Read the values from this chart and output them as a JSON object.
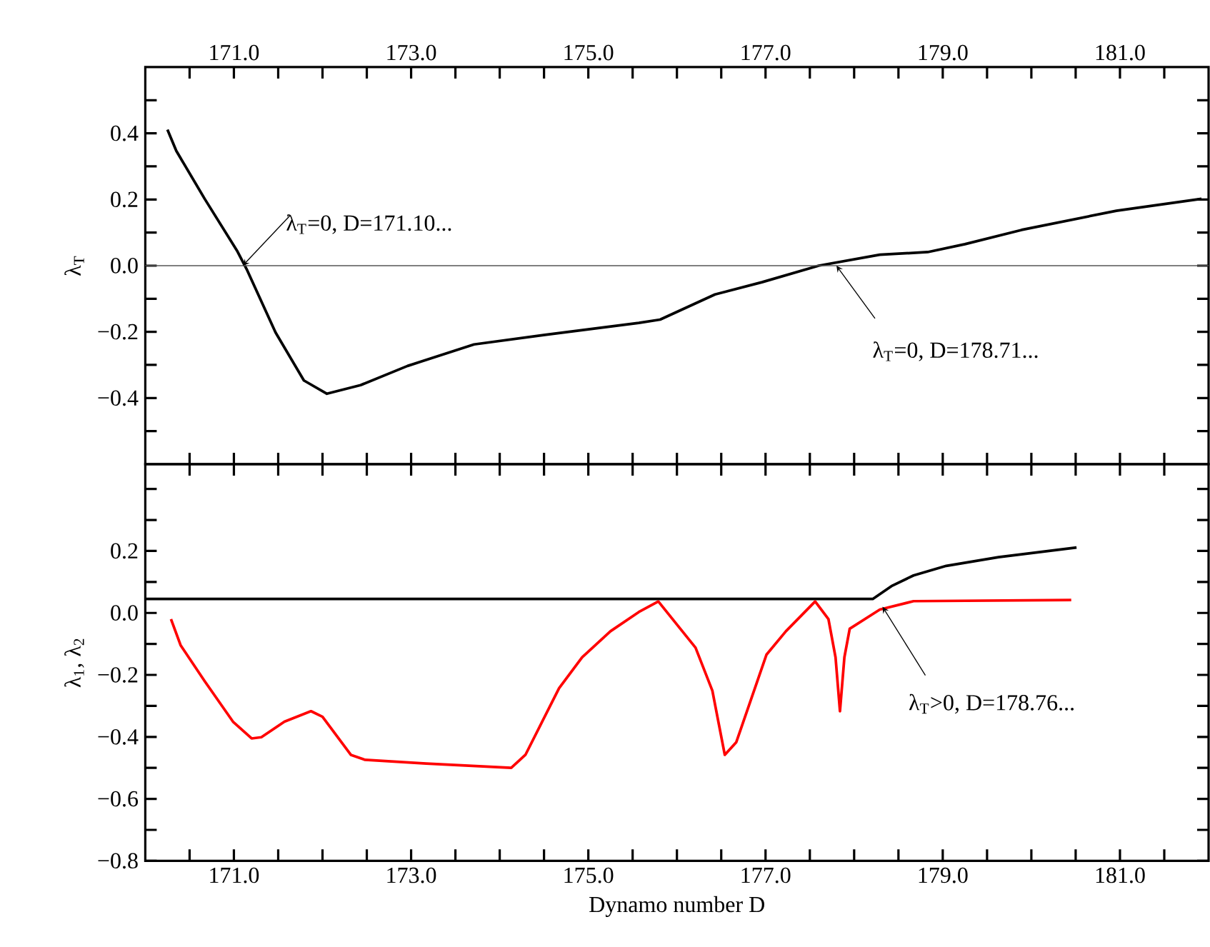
{
  "chart_data": [
    {
      "type": "line",
      "ylabel": "λ$_{T}$",
      "xlim": [
        170,
        182
      ],
      "ylim": [
        -0.6,
        0.6
      ],
      "xticks": [
        {
          "value": 170.5,
          "label": null
        },
        {
          "value": 171,
          "label": "171.0"
        },
        {
          "value": 171.5,
          "label": null
        },
        {
          "value": 172,
          "label": null
        },
        {
          "value": 172.5,
          "label": null
        },
        {
          "value": 173,
          "label": "173.0"
        },
        {
          "value": 173.5,
          "label": null
        },
        {
          "value": 174,
          "label": null
        },
        {
          "value": 174.5,
          "label": null
        },
        {
          "value": 175,
          "label": "175.0"
        },
        {
          "value": 175.5,
          "label": null
        },
        {
          "value": 176,
          "label": null
        },
        {
          "value": 176.5,
          "label": null
        },
        {
          "value": 177,
          "label": "177.0"
        },
        {
          "value": 177.5,
          "label": null
        },
        {
          "value": 178,
          "label": null
        },
        {
          "value": 178.5,
          "label": null
        },
        {
          "value": 179,
          "label": "179.0"
        },
        {
          "value": 179.5,
          "label": null
        },
        {
          "value": 180,
          "label": null
        },
        {
          "value": 180.5,
          "label": null
        },
        {
          "value": 181,
          "label": "181.0"
        },
        {
          "value": 181.5,
          "label": null
        }
      ],
      "yticks": [
        {
          "value": -0.5,
          "label": null
        },
        {
          "value": -0.4,
          "label": "−0.4"
        },
        {
          "value": -0.3,
          "label": null
        },
        {
          "value": -0.2,
          "label": "−0.2"
        },
        {
          "value": -0.1,
          "label": null
        },
        {
          "value": 0,
          "label": "0.0"
        },
        {
          "value": 0.1,
          "label": null
        },
        {
          "value": 0.2,
          "label": "0.2"
        },
        {
          "value": 0.3,
          "label": null
        },
        {
          "value": 0.4,
          "label": "0.4"
        },
        {
          "value": 0.5,
          "label": null
        }
      ],
      "ref_lines": [
        {
          "axis": "y",
          "value": 0,
          "color": "#555555"
        }
      ],
      "annotations": [
        {
          "text": "λ$_{T}$=0, D=171.10...",
          "x": 171.1,
          "y": 0
        },
        {
          "text": "λ$_{T}$=0, D=178.71...",
          "x": 177.8,
          "y": 0
        }
      ],
      "series": [
        {
          "color": "#000000",
          "x": [
            170.25,
            170.35,
            170.67,
            171.04,
            171.15,
            171.47,
            171.79,
            172.05,
            172.43,
            172.96,
            173.71,
            174.51,
            175.57,
            175.81,
            176.43,
            176.96,
            177.6,
            178.29,
            178.83,
            179.25,
            179.89,
            180.96,
            181.92
          ],
          "values": [
            0.411,
            0.347,
            0.202,
            0.043,
            -0.014,
            -0.202,
            -0.347,
            -0.387,
            -0.361,
            -0.303,
            -0.238,
            -0.209,
            -0.173,
            -0.163,
            -0.087,
            -0.05,
            0.0,
            0.033,
            0.041,
            0.065,
            0.108,
            0.166,
            0.202
          ]
        }
      ]
    },
    {
      "type": "line",
      "xlabel": "Dynamo number D",
      "ylabel": "λ$_{1}$, λ$_{2}$",
      "xlim": [
        170,
        182
      ],
      "ylim": [
        -0.8,
        0.48
      ],
      "xticks": [
        {
          "value": 170.5,
          "label": null
        },
        {
          "value": 171,
          "label": "171.0"
        },
        {
          "value": 171.5,
          "label": null
        },
        {
          "value": 172,
          "label": null
        },
        {
          "value": 172.5,
          "label": null
        },
        {
          "value": 173,
          "label": "173.0"
        },
        {
          "value": 173.5,
          "label": null
        },
        {
          "value": 174,
          "label": null
        },
        {
          "value": 174.5,
          "label": null
        },
        {
          "value": 175,
          "label": "175.0"
        },
        {
          "value": 175.5,
          "label": null
        },
        {
          "value": 176,
          "label": null
        },
        {
          "value": 176.5,
          "label": null
        },
        {
          "value": 177,
          "label": "177.0"
        },
        {
          "value": 177.5,
          "label": null
        },
        {
          "value": 178,
          "label": null
        },
        {
          "value": 178.5,
          "label": null
        },
        {
          "value": 179,
          "label": "179.0"
        },
        {
          "value": 179.5,
          "label": null
        },
        {
          "value": 180,
          "label": null
        },
        {
          "value": 180.5,
          "label": null
        },
        {
          "value": 181,
          "label": "181.0"
        },
        {
          "value": 181.5,
          "label": null
        }
      ],
      "yticks": [
        {
          "value": -0.8,
          "label": "−0.8"
        },
        {
          "value": -0.7,
          "label": null
        },
        {
          "value": -0.6,
          "label": "−0.6"
        },
        {
          "value": -0.5,
          "label": null
        },
        {
          "value": -0.4,
          "label": "−0.4"
        },
        {
          "value": -0.3,
          "label": null
        },
        {
          "value": -0.2,
          "label": "−0.2"
        },
        {
          "value": -0.1,
          "label": null
        },
        {
          "value": 0,
          "label": "0.0"
        },
        {
          "value": 0.1,
          "label": null
        },
        {
          "value": 0.2,
          "label": "0.2"
        },
        {
          "value": 0.3,
          "label": null
        },
        {
          "value": 0.4,
          "label": null
        }
      ],
      "annotations": [
        {
          "text": "λ$_{T}$>0, D=178.76...",
          "x": 178.32,
          "y": 0.02
        }
      ],
      "series": [
        {
          "color": "#000000",
          "x": [
            170.0,
            178.21,
            178.43,
            178.67,
            179.04,
            179.63,
            180.51
          ],
          "values": [
            0.045,
            0.045,
            0.088,
            0.121,
            0.152,
            0.18,
            0.211
          ]
        },
        {
          "color": "#ff0000",
          "x": [
            170.29,
            170.4,
            170.67,
            170.99,
            171.2,
            171.31,
            171.57,
            171.87,
            172.0,
            172.32,
            172.48,
            173.17,
            174.13,
            174.29,
            174.67,
            174.93,
            175.25,
            175.57,
            175.79,
            176.21,
            176.4,
            176.54,
            176.67,
            177.01,
            177.23,
            177.56,
            177.71,
            177.79,
            177.84,
            177.89,
            177.95,
            178.29,
            178.67,
            180.45
          ],
          "values": [
            -0.02,
            -0.105,
            -0.22,
            -0.351,
            -0.405,
            -0.401,
            -0.351,
            -0.317,
            -0.335,
            -0.458,
            -0.474,
            -0.486,
            -0.5,
            -0.458,
            -0.243,
            -0.143,
            -0.059,
            0.003,
            0.037,
            -0.112,
            -0.251,
            -0.458,
            -0.417,
            -0.135,
            -0.059,
            0.037,
            -0.02,
            -0.143,
            -0.317,
            -0.143,
            -0.051,
            0.011,
            0.038,
            0.042
          ]
        }
      ]
    }
  ]
}
